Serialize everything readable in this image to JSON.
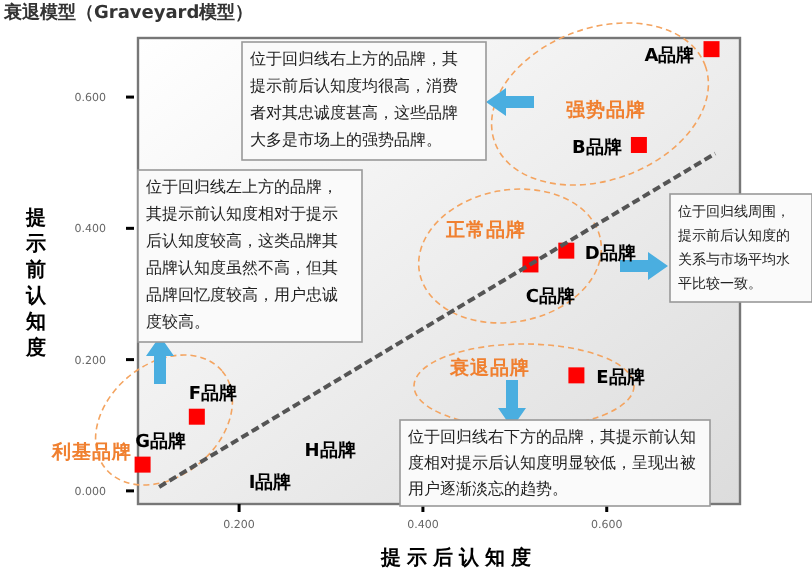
{
  "chart_data": {
    "type": "scatter",
    "title": "衰退模型（Graveyard模型）",
    "xlabel": "提示后认知度",
    "ylabel": "提示前认知度",
    "xlim": [
      0.09,
      0.745
    ],
    "ylim": [
      -0.02,
      0.69
    ],
    "xticks": [
      {
        "value": 0.2,
        "label": "0.200"
      },
      {
        "value": 0.4,
        "label": "0.400"
      },
      {
        "value": 0.6,
        "label": "0.600"
      }
    ],
    "yticks": [
      {
        "value": 0.0,
        "label": "0.000"
      },
      {
        "value": 0.2,
        "label": "0.200"
      },
      {
        "value": 0.4,
        "label": "0.400"
      },
      {
        "value": 0.6,
        "label": "0.600"
      }
    ],
    "marker": "square",
    "grid": false,
    "series": [
      {
        "name": "A品牌",
        "color": "#ff0000",
        "x": [
          0.714
        ],
        "values": [
          0.673
        ]
      },
      {
        "name": "B品牌",
        "color": "#ff0000",
        "x": [
          0.635
        ],
        "values": [
          0.527
        ]
      },
      {
        "name": "C品牌",
        "color": "#ff0000",
        "x": [
          0.517
        ],
        "values": [
          0.345
        ]
      },
      {
        "name": "D品牌",
        "color": "#ff0000",
        "x": [
          0.556
        ],
        "values": [
          0.366
        ]
      },
      {
        "name": "E品牌",
        "color": "#ff0000",
        "x": [
          0.567
        ],
        "values": [
          0.176
        ]
      },
      {
        "name": "F品牌",
        "color": "#ff0000",
        "x": [
          0.154
        ],
        "values": [
          0.113
        ]
      },
      {
        "name": "G品牌",
        "color": "#ff0000",
        "x": [
          0.095
        ],
        "values": [
          0.04
        ]
      },
      {
        "type": "line",
        "color": "#555555",
        "line_style": "dashed",
        "marker": "none",
        "x": [
          0.113,
          0.718
        ],
        "values": [
          0.006,
          0.514
        ]
      }
    ],
    "annotations": [
      "强势品牌",
      "正常品牌",
      "衰退品牌",
      "利基品牌",
      "位于回归线右上方的品牌，其提示前后认知度均很高，消费者对其忠诚度甚高，这些品牌大多是市场上的强势品牌。",
      "位于回归线左上方的品牌，其提示前认知度相对于提示后认知度较高，这类品牌其品牌认知度虽然不高，但其品牌回忆度较高，用户忠诚度较高。",
      "位于回归线周围，提示前后认知度的关系与市场平均水平比较一致。",
      "位于回归线右下方的品牌，其提示前认知度相对提示后认知度明显较低，呈现出被用户逐渐淡忘的趋势。",
      "H品牌",
      "I品牌"
    ]
  }
}
